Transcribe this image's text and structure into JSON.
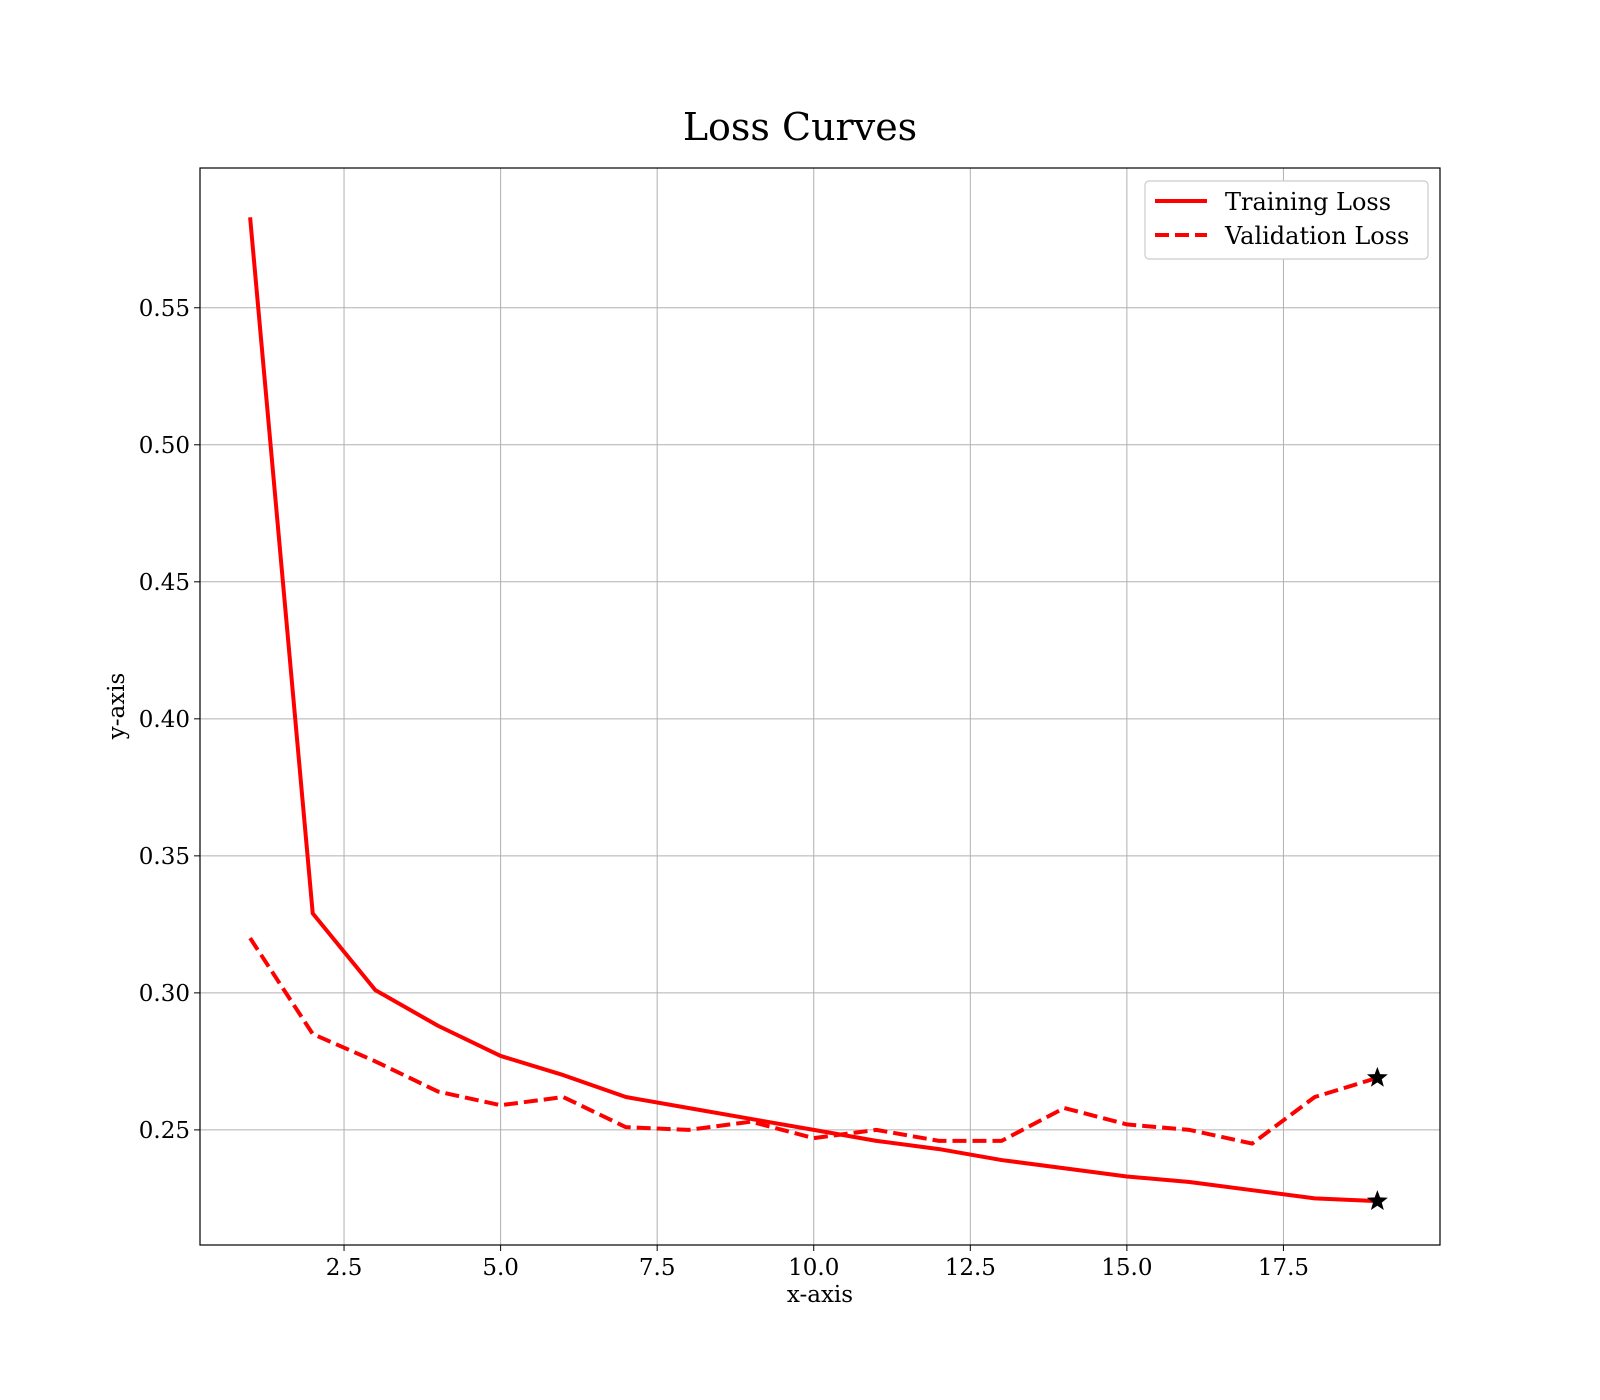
{
  "chart_data": {
    "type": "line",
    "title": "Loss Curves",
    "xlabel": "x-axis",
    "ylabel": "y-axis",
    "xlim": [
      0.2,
      20.0
    ],
    "ylim": [
      0.208,
      0.601
    ],
    "xticks": [
      2.5,
      5.0,
      7.5,
      10.0,
      12.5,
      15.0,
      17.5
    ],
    "xtick_labels": [
      "2.5",
      "5.0",
      "7.5",
      "10.0",
      "12.5",
      "15.0",
      "17.5"
    ],
    "yticks": [
      0.25,
      0.3,
      0.35,
      0.4,
      0.45,
      0.5,
      0.55
    ],
    "ytick_labels": [
      "0.25",
      "0.30",
      "0.35",
      "0.40",
      "0.45",
      "0.50",
      "0.55"
    ],
    "grid": true,
    "legend_position": "top-right",
    "x": [
      1,
      2,
      3,
      4,
      5,
      6,
      7,
      8,
      9,
      10,
      11,
      12,
      13,
      14,
      15,
      16,
      17,
      18,
      19
    ],
    "series": [
      {
        "name": "Training Loss",
        "style": "solid",
        "color": "#ff0000",
        "values": [
          0.583,
          0.329,
          0.301,
          0.288,
          0.277,
          0.27,
          0.262,
          0.258,
          0.254,
          0.25,
          0.246,
          0.243,
          0.239,
          0.236,
          0.233,
          0.231,
          0.228,
          0.225,
          0.224
        ]
      },
      {
        "name": "Validation Loss",
        "style": "dashed",
        "color": "#ff0000",
        "values": [
          0.32,
          0.285,
          0.275,
          0.264,
          0.259,
          0.262,
          0.251,
          0.25,
          0.253,
          0.247,
          0.25,
          0.246,
          0.246,
          0.258,
          0.252,
          0.25,
          0.245,
          0.262,
          0.269
        ]
      }
    ],
    "markers": [
      {
        "series": "Training Loss",
        "x": 19,
        "y": 0.224,
        "symbol": "star",
        "color": "#000000"
      },
      {
        "series": "Validation Loss",
        "x": 19,
        "y": 0.269,
        "symbol": "star",
        "color": "#000000"
      }
    ]
  }
}
